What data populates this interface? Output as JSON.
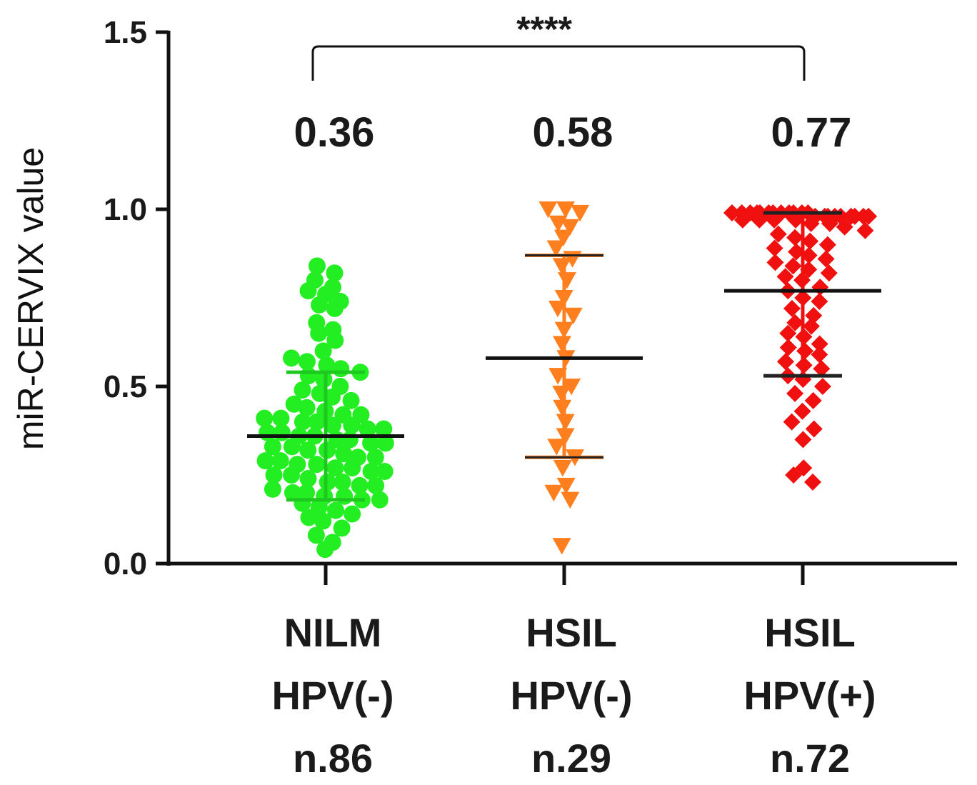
{
  "chart_data": {
    "type": "scatter",
    "subtype": "dot-plot-with-mean-and-sd",
    "title": "",
    "ylabel": "miR-CERVIX value",
    "xlabel": "",
    "ylim": [
      0,
      1.5
    ],
    "yticks": [
      "0.0",
      "0.5",
      "1.0",
      "1.5"
    ],
    "significance": {
      "label": "****",
      "from_group": 0,
      "to_group": 2
    },
    "series": [
      {
        "name": "NILM HPV(-)",
        "label_lines": [
          "NILM",
          "HPV(-)",
          "n.86"
        ],
        "n": 86,
        "color": "#22ee22",
        "marker": "circle",
        "mean": 0.36,
        "mean_label": "0.36",
        "sd_low": 0.18,
        "sd_high": 0.54,
        "values": [
          0.84,
          0.82,
          0.8,
          0.78,
          0.77,
          0.76,
          0.74,
          0.73,
          0.72,
          0.68,
          0.66,
          0.65,
          0.63,
          0.6,
          0.58,
          0.57,
          0.56,
          0.55,
          0.54,
          0.53,
          0.52,
          0.5,
          0.49,
          0.48,
          0.47,
          0.46,
          0.45,
          0.44,
          0.43,
          0.42,
          0.42,
          0.41,
          0.41,
          0.4,
          0.4,
          0.39,
          0.39,
          0.38,
          0.38,
          0.37,
          0.37,
          0.36,
          0.36,
          0.35,
          0.35,
          0.34,
          0.34,
          0.33,
          0.33,
          0.32,
          0.32,
          0.31,
          0.3,
          0.3,
          0.29,
          0.29,
          0.28,
          0.28,
          0.27,
          0.27,
          0.26,
          0.26,
          0.25,
          0.25,
          0.24,
          0.23,
          0.23,
          0.22,
          0.22,
          0.21,
          0.2,
          0.2,
          0.19,
          0.19,
          0.18,
          0.18,
          0.17,
          0.16,
          0.15,
          0.14,
          0.13,
          0.12,
          0.1,
          0.08,
          0.06,
          0.04
        ]
      },
      {
        "name": "HSIL HPV(-)",
        "label_lines": [
          "HSIL",
          "HPV(-)",
          "n.29"
        ],
        "n": 29,
        "color": "#ff7f1e",
        "marker": "triangle-down",
        "mean": 0.58,
        "mean_label": "0.58",
        "sd_low": 0.3,
        "sd_high": 0.87,
        "values": [
          1.0,
          1.0,
          0.99,
          0.96,
          0.95,
          0.92,
          0.89,
          0.86,
          0.84,
          0.8,
          0.75,
          0.72,
          0.7,
          0.66,
          0.62,
          0.58,
          0.53,
          0.5,
          0.48,
          0.44,
          0.4,
          0.36,
          0.33,
          0.3,
          0.27,
          0.22,
          0.2,
          0.18,
          0.05
        ]
      },
      {
        "name": "HSIL HPV(+)",
        "label_lines": [
          "HSIL",
          "HPV(+)",
          "n.72"
        ],
        "n": 72,
        "color": "#f01010",
        "marker": "diamond",
        "mean": 0.77,
        "mean_label": "0.77",
        "sd_low": 0.53,
        "sd_high": 0.99,
        "values": [
          0.99,
          0.99,
          0.99,
          0.99,
          0.99,
          0.99,
          0.99,
          0.99,
          0.99,
          0.99,
          0.99,
          0.99,
          0.98,
          0.98,
          0.98,
          0.98,
          0.98,
          0.98,
          0.98,
          0.98,
          0.98,
          0.97,
          0.97,
          0.97,
          0.97,
          0.96,
          0.96,
          0.95,
          0.94,
          0.93,
          0.92,
          0.91,
          0.9,
          0.89,
          0.88,
          0.87,
          0.86,
          0.85,
          0.84,
          0.83,
          0.82,
          0.81,
          0.8,
          0.78,
          0.77,
          0.75,
          0.74,
          0.72,
          0.7,
          0.68,
          0.67,
          0.65,
          0.64,
          0.62,
          0.61,
          0.6,
          0.59,
          0.57,
          0.56,
          0.55,
          0.53,
          0.52,
          0.5,
          0.48,
          0.46,
          0.43,
          0.4,
          0.38,
          0.35,
          0.27,
          0.25,
          0.23
        ]
      }
    ]
  }
}
